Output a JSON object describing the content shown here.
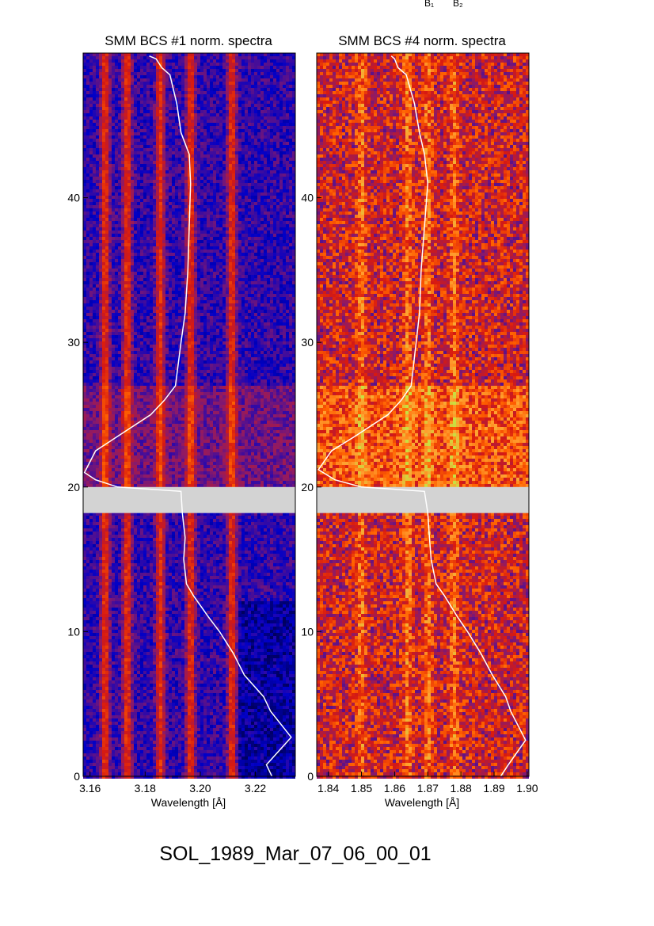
{
  "header_marks": [
    "B₁",
    "B₂"
  ],
  "chart_data": [
    {
      "type": "heatmap",
      "title": "SMM BCS #1 norm. spectra",
      "xlabel": "Wavelength [Å]",
      "ylabel": "",
      "xlim": [
        3.1575,
        3.2345
      ],
      "ylim": [
        0,
        50
      ],
      "xticks": [
        "3.16",
        "3.18",
        "3.20",
        "3.22"
      ],
      "xtick_values": [
        3.16,
        3.18,
        3.2,
        3.22
      ],
      "yticks": [
        "0",
        "10",
        "20",
        "30",
        "40"
      ],
      "ytick_values": [
        0,
        10,
        20,
        30,
        40
      ],
      "data_gap": [
        18.2,
        20.0
      ],
      "emission_lines": [
        3.1655,
        3.1735,
        3.1855,
        3.1965,
        3.2115
      ],
      "colormap": [
        "#000020",
        "#0000c8",
        "#8a1a6a",
        "#d81a10",
        "#ff6000",
        "#ffa030",
        "#c8e040"
      ],
      "gap_color": "#d3d3d3",
      "overlay_line": {
        "color": "#ffffff",
        "points": [
          [
            3.226,
            0.0
          ],
          [
            3.224,
            0.8
          ],
          [
            3.233,
            2.7
          ],
          [
            3.2255,
            4.5
          ],
          [
            3.223,
            5.5
          ],
          [
            3.216,
            7.0
          ],
          [
            3.212,
            8.5
          ],
          [
            3.207,
            10.0
          ],
          [
            3.203,
            11.0
          ],
          [
            3.1975,
            12.5
          ],
          [
            3.195,
            13.3
          ],
          [
            3.194,
            15.0
          ],
          [
            3.1945,
            16.5
          ],
          [
            3.1935,
            18.2
          ],
          [
            3.193,
            19.7
          ],
          [
            3.17,
            20.0
          ],
          [
            3.162,
            20.5
          ],
          [
            3.158,
            21.0
          ],
          [
            3.162,
            22.5
          ],
          [
            3.17,
            23.5
          ],
          [
            3.182,
            25.0
          ],
          [
            3.187,
            26.0
          ],
          [
            3.191,
            27.0
          ],
          [
            3.193,
            30.0
          ],
          [
            3.1945,
            32.0
          ],
          [
            3.1955,
            35.0
          ],
          [
            3.196,
            38.0
          ],
          [
            3.1965,
            41.0
          ],
          [
            3.196,
            43.0
          ],
          [
            3.193,
            44.5
          ],
          [
            3.1915,
            46.5
          ],
          [
            3.189,
            48.5
          ],
          [
            3.186,
            49.0
          ],
          [
            3.184,
            49.6
          ],
          [
            3.1815,
            49.8
          ]
        ]
      }
    },
    {
      "type": "heatmap",
      "title": "SMM BCS #4 norm. spectra",
      "xlabel": "Wavelength [Å]",
      "ylabel": "",
      "xlim": [
        1.8365,
        1.9005
      ],
      "ylim": [
        0,
        50
      ],
      "xticks": [
        "1.84",
        "1.85",
        "1.86",
        "1.87",
        "1.88",
        "1.89",
        "1.90"
      ],
      "xtick_values": [
        1.84,
        1.85,
        1.86,
        1.87,
        1.88,
        1.89,
        1.9
      ],
      "yticks": [
        "0",
        "10",
        "20",
        "30",
        "40"
      ],
      "ytick_values": [
        0,
        10,
        20,
        30,
        40
      ],
      "data_gap": [
        18.2,
        20.0
      ],
      "emission_lines": [
        1.85,
        1.864,
        1.87,
        1.878
      ],
      "colormap": [
        "#000020",
        "#0000c8",
        "#8a1a6a",
        "#d81a10",
        "#ff6000",
        "#ffa030",
        "#c8e040"
      ],
      "gap_color": "#d3d3d3",
      "overlay_line": {
        "color": "#ffffff",
        "points": [
          [
            1.892,
            0.0
          ],
          [
            1.894,
            0.7
          ],
          [
            1.8995,
            2.5
          ],
          [
            1.895,
            4.5
          ],
          [
            1.8935,
            5.5
          ],
          [
            1.8895,
            7.0
          ],
          [
            1.886,
            8.5
          ],
          [
            1.882,
            10.0
          ],
          [
            1.879,
            11.0
          ],
          [
            1.875,
            12.5
          ],
          [
            1.8725,
            13.3
          ],
          [
            1.871,
            15.0
          ],
          [
            1.8705,
            16.5
          ],
          [
            1.87,
            18.2
          ],
          [
            1.869,
            19.7
          ],
          [
            1.85,
            20.0
          ],
          [
            1.842,
            20.5
          ],
          [
            1.837,
            21.2
          ],
          [
            1.841,
            22.5
          ],
          [
            1.848,
            23.5
          ],
          [
            1.858,
            25.0
          ],
          [
            1.862,
            26.0
          ],
          [
            1.865,
            27.0
          ],
          [
            1.8665,
            30.0
          ],
          [
            1.8675,
            32.0
          ],
          [
            1.868,
            35.0
          ],
          [
            1.869,
            38.0
          ],
          [
            1.87,
            41.0
          ],
          [
            1.869,
            43.0
          ],
          [
            1.8675,
            44.5
          ],
          [
            1.866,
            46.5
          ],
          [
            1.8635,
            48.5
          ],
          [
            1.861,
            49.0
          ],
          [
            1.86,
            49.6
          ],
          [
            1.859,
            49.8
          ]
        ]
      }
    }
  ],
  "footer_label": "SOL_1989_Mar_07_06_00_01"
}
